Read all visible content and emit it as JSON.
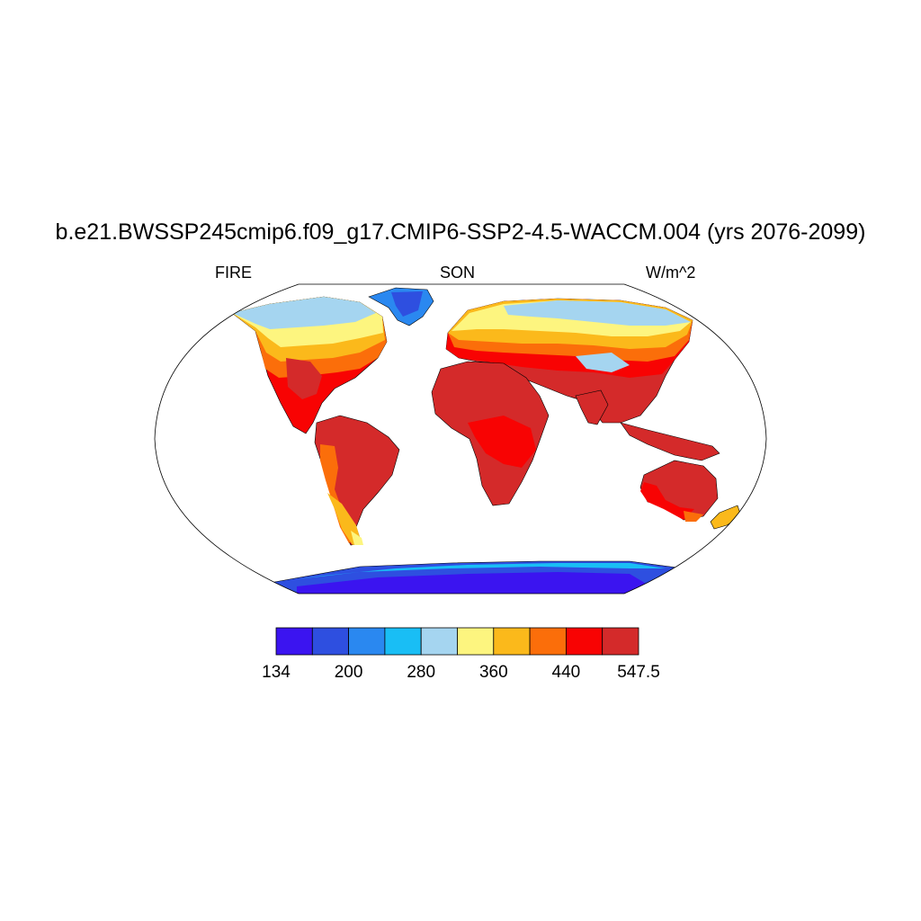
{
  "title": "b.e21.BWSSP245cmip6.f09_g17.CMIP6-SSP2-4.5-WACCM.004 (yrs 2076-2099)",
  "left_string": "FIRE",
  "center_string": "SON",
  "right_string": "W/m^2",
  "colorbar": {
    "colors": [
      "#3b14f0",
      "#2e4fe0",
      "#2a88f0",
      "#19bef5",
      "#a5d5f0",
      "#fdf57f",
      "#fbb91b",
      "#fb6e0a",
      "#f80303",
      "#d42a2a"
    ],
    "labels": [
      "134",
      "200",
      "280",
      "360",
      "440",
      "547.5"
    ]
  }
}
